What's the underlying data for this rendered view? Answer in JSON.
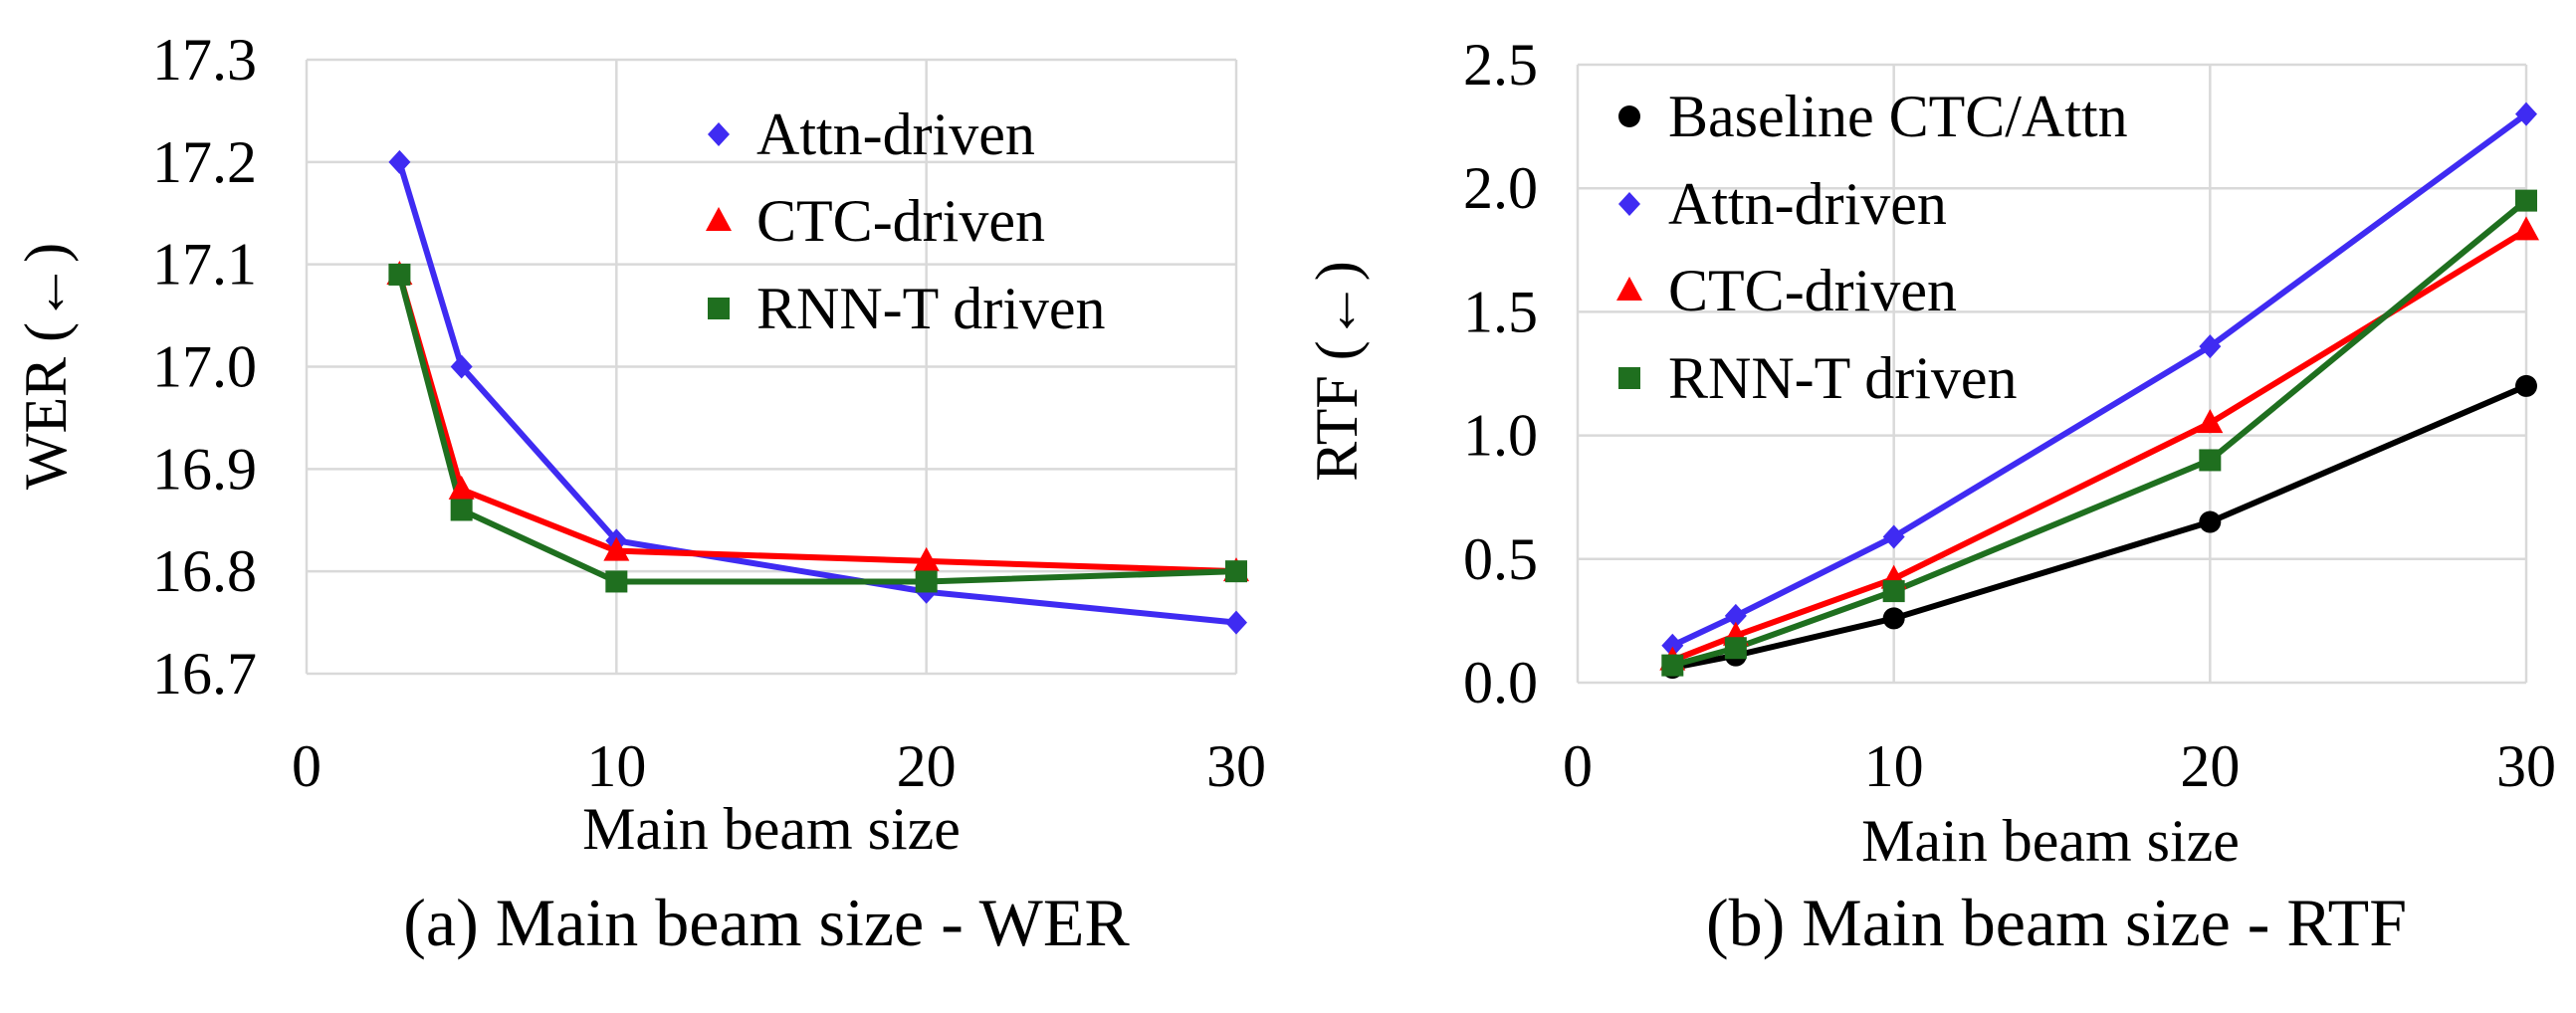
{
  "chart_data": [
    {
      "type": "line",
      "caption": "(a) Main beam size - WER",
      "xlabel": "Main beam size",
      "ylabel": "WER (←)",
      "xlim": [
        0,
        30
      ],
      "ylim": [
        16.7,
        17.3
      ],
      "xticks": [
        "0",
        "10",
        "20",
        "30"
      ],
      "yticks": [
        "16.7",
        "16.8",
        "16.9",
        "17.0",
        "17.1",
        "17.2",
        "17.3"
      ],
      "grid": true,
      "legend_position": "top-right",
      "x": [
        3,
        5,
        10,
        20,
        30
      ],
      "series": [
        {
          "name": "Attn-driven",
          "color": "#3f2bf2",
          "marker": "diamond",
          "values": [
            17.2,
            17.0,
            16.83,
            16.78,
            16.75
          ]
        },
        {
          "name": "CTC-driven",
          "color": "#ff0000",
          "marker": "triangle",
          "values": [
            17.09,
            16.88,
            16.82,
            16.81,
            16.8
          ]
        },
        {
          "name": "RNN-T driven",
          "color": "#1f6f1f",
          "marker": "square",
          "values": [
            17.09,
            16.86,
            16.79,
            16.79,
            16.8
          ]
        }
      ]
    },
    {
      "type": "line",
      "caption": "(b) Main beam size - RTF",
      "xlabel": "Main beam size",
      "ylabel": "RTF (←)",
      "xlim": [
        0,
        30
      ],
      "ylim": [
        0.0,
        2.5
      ],
      "xticks": [
        "0",
        "10",
        "20",
        "30"
      ],
      "yticks": [
        "0.0",
        "0.5",
        "1.0",
        "1.5",
        "2.0",
        "2.5"
      ],
      "grid": true,
      "legend_position": "top-left",
      "x": [
        3,
        5,
        10,
        20,
        30
      ],
      "series": [
        {
          "name": "Baseline CTC/Attn",
          "color": "#000000",
          "marker": "circle",
          "values": [
            0.06,
            0.11,
            0.26,
            0.65,
            1.2
          ]
        },
        {
          "name": "Attn-driven",
          "color": "#3f2bf2",
          "marker": "diamond",
          "values": [
            0.15,
            0.27,
            0.59,
            1.36,
            2.3
          ]
        },
        {
          "name": "CTC-driven",
          "color": "#ff0000",
          "marker": "triangle",
          "values": [
            0.09,
            0.19,
            0.42,
            1.05,
            1.83
          ]
        },
        {
          "name": "RNN-T driven",
          "color": "#1f6f1f",
          "marker": "square",
          "values": [
            0.07,
            0.14,
            0.37,
            0.9,
            1.95
          ]
        }
      ]
    }
  ]
}
